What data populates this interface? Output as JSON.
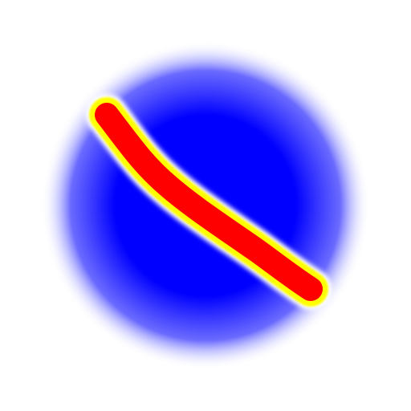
{
  "image": {
    "background_color": "#ffffff",
    "glow": {
      "inner_color": "#0000ff",
      "outer_color": "#ffffff"
    },
    "stripe": {
      "core_color": "#ff0000",
      "rim_color": "#ffff00",
      "halo_color": "#ffffff"
    }
  }
}
